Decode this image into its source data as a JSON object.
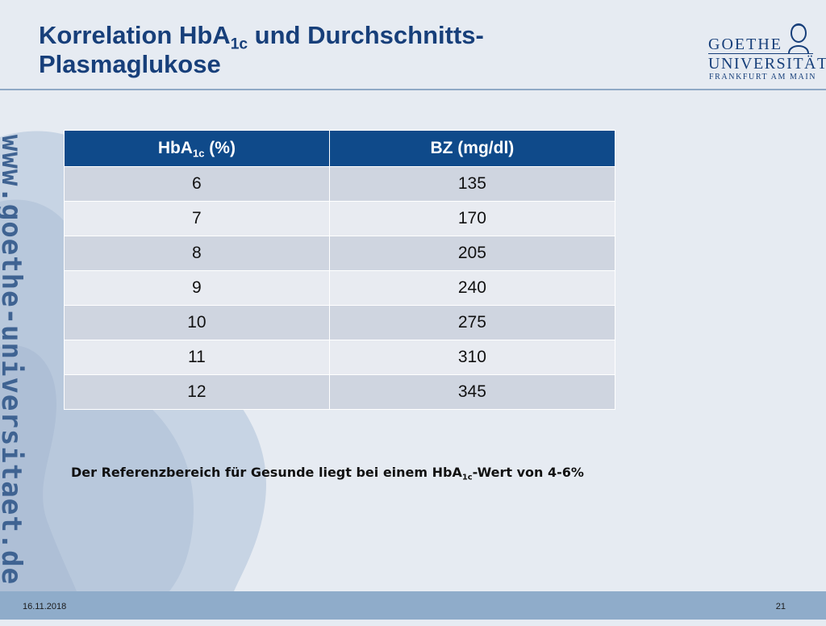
{
  "slide": {
    "title_part1": "Korrelation HbA",
    "title_sub": "1c",
    "title_part2": " und Durchschnitts-",
    "title_line2": "Plasmaglukose"
  },
  "logo": {
    "line1": "GOETHE",
    "line2": "UNIVERSITÄT",
    "line3": "FRANKFURT AM MAIN"
  },
  "side_url": "www.goethe-universitaet.de",
  "table": {
    "header_col1_main": "HbA",
    "header_col1_sub": "1c",
    "header_col1_tail": " (%)",
    "header_col2": "BZ (mg/dl)",
    "rows": [
      {
        "hba1c": "6",
        "bz": "135"
      },
      {
        "hba1c": "7",
        "bz": "170"
      },
      {
        "hba1c": "8",
        "bz": "205"
      },
      {
        "hba1c": "9",
        "bz": "240"
      },
      {
        "hba1c": "10",
        "bz": "275"
      },
      {
        "hba1c": "11",
        "bz": "310"
      },
      {
        "hba1c": "12",
        "bz": "345"
      }
    ]
  },
  "note": {
    "part1": "Der Referenzbereich für Gesunde liegt bei einem HbA",
    "sub": "1c",
    "part2": "-Wert von 4-6%"
  },
  "footer": {
    "date": "16.11.2018",
    "page": "21"
  },
  "colors": {
    "title": "#173f7a",
    "table_header": "#0f4a8a",
    "footer_bar": "#8facca"
  }
}
